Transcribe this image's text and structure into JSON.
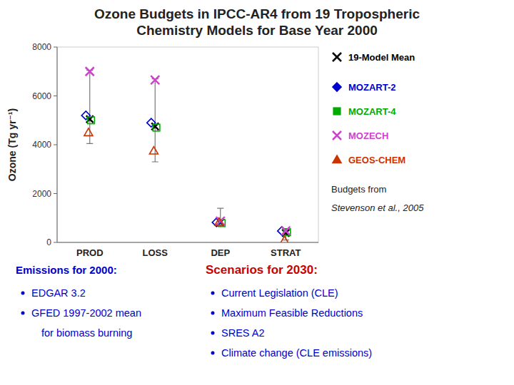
{
  "chart_data": {
    "type": "scatter",
    "title": "Ozone Budgets in IPCC-AR4 from 19 Tropospheric",
    "subtitle": "Chemistry Models for Base Year 2000",
    "y_label": "Ozone (Tg yr⁻¹)",
    "categories": [
      "PROD",
      "LOSS",
      "DEP",
      "STRAT"
    ],
    "ylim": [
      0,
      8000
    ],
    "yticks": [
      0,
      2000,
      4000,
      6000,
      8000
    ],
    "grid": false,
    "legend": "right",
    "series": [
      {
        "name": "19-Model Mean",
        "color": "#000000",
        "marker": "x",
        "values": [
          5050,
          4750,
          830,
          380
        ],
        "range_low": [
          4050,
          3300,
          680,
          100
        ],
        "range_high": [
          7050,
          6700,
          1400,
          560
        ]
      },
      {
        "name": "MOZART-2",
        "color": "#0000cc",
        "marker": "diamond",
        "values": [
          5200,
          4900,
          820,
          470
        ]
      },
      {
        "name": "MOZART-4",
        "color": "#00aa00",
        "marker": "square",
        "values": [
          5000,
          4700,
          790,
          420
        ]
      },
      {
        "name": "MOZECH",
        "color": "#cc44cc",
        "marker": "x",
        "values": [
          7000,
          6650,
          870,
          470
        ]
      },
      {
        "name": "GEOS-CHEM",
        "color": "#cc3300",
        "marker": "triangle",
        "values": [
          4500,
          3750,
          830,
          80
        ]
      }
    ],
    "reference": [
      "Budgets from",
      "Stevenson et al., 2005"
    ],
    "notes": [
      {
        "title": "Emissions for 2000:",
        "title_color": "#0000cc",
        "color": "#0000cc",
        "items": [
          "EDGAR 3.2",
          "GFED 1997-2002 mean",
          "    for biomass burning"
        ]
      },
      {
        "title": "Scenarios for 2030:",
        "title_color": "#cc0000",
        "color": "#0000cc",
        "items": [
          "Current Legislation (CLE)",
          "Maximum Feasible Reductions",
          "SRES A2",
          "Climate change (CLE emissions)"
        ]
      }
    ]
  }
}
